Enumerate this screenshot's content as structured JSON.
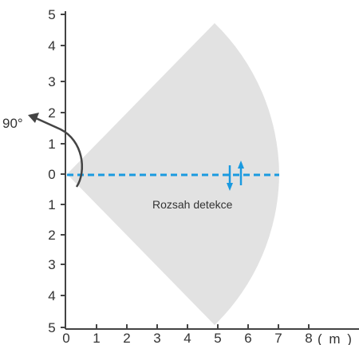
{
  "y_axis_ticks": [
    "5",
    "4",
    "3",
    "2",
    "1",
    "0",
    "1",
    "2",
    "3",
    "4",
    "5"
  ],
  "x_axis_ticks": [
    "0",
    "1",
    "2",
    "3",
    "4",
    "5",
    "6",
    "7",
    "8"
  ],
  "x_axis_unit": "( m )",
  "angle_label": "90°",
  "zone_label": "Rozsah detekce",
  "range_max_m": 7,
  "half_angle_deg": 45,
  "colors": {
    "zone_fill": "#e2e2e2",
    "axis": "#444444",
    "beam": "#1a9ae0",
    "text": "#333333"
  }
}
